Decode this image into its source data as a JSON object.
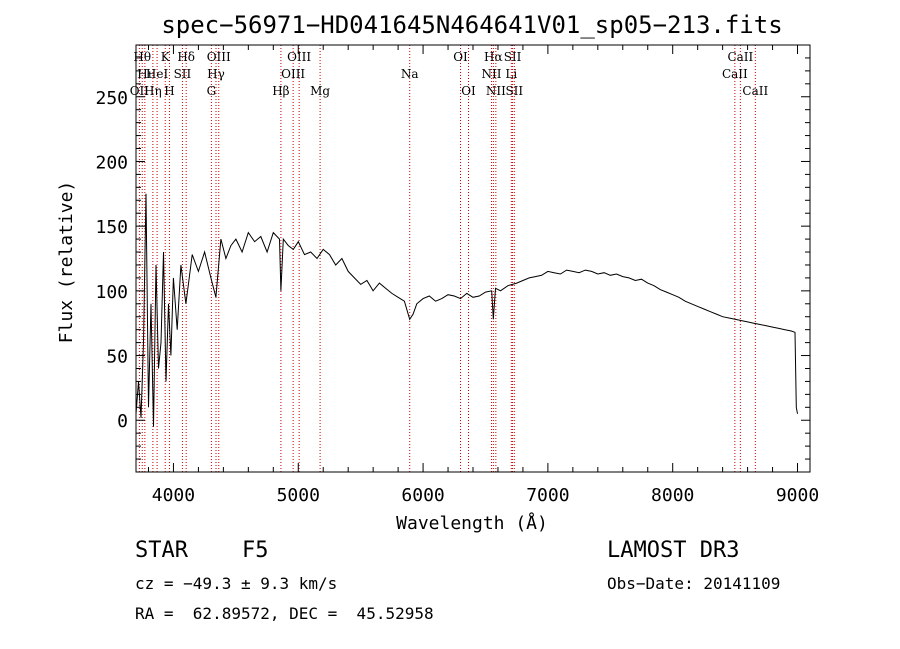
{
  "chart_data": {
    "type": "line",
    "title": "spec−56971−HD041645N464641V01_sp05−213.fits",
    "xlabel": "Wavelength (Å)",
    "ylabel": "Flux (relative)",
    "xlim": [
      3700,
      9100
    ],
    "ylim": [
      -40,
      290
    ],
    "xticks": [
      4000,
      5000,
      6000,
      7000,
      8000,
      9000
    ],
    "yticks": [
      0,
      50,
      100,
      150,
      200,
      250
    ],
    "grid": false,
    "series": [
      {
        "name": "flux",
        "x": [
          3700,
          3720,
          3740,
          3760,
          3780,
          3800,
          3820,
          3840,
          3860,
          3880,
          3900,
          3920,
          3940,
          3960,
          3980,
          4000,
          4030,
          4060,
          4100,
          4150,
          4200,
          4250,
          4300,
          4340,
          4380,
          4420,
          4460,
          4500,
          4550,
          4600,
          4650,
          4700,
          4750,
          4800,
          4850,
          4861,
          4880,
          4920,
          4960,
          5000,
          5050,
          5100,
          5150,
          5200,
          5250,
          5300,
          5350,
          5400,
          5450,
          5500,
          5550,
          5600,
          5650,
          5700,
          5750,
          5800,
          5850,
          5893,
          5920,
          5950,
          6000,
          6050,
          6100,
          6150,
          6200,
          6250,
          6300,
          6350,
          6400,
          6450,
          6500,
          6550,
          6563,
          6580,
          6620,
          6680,
          6750,
          6800,
          6850,
          6900,
          6950,
          7000,
          7050,
          7100,
          7150,
          7200,
          7250,
          7300,
          7350,
          7400,
          7450,
          7500,
          7550,
          7600,
          7650,
          7700,
          7750,
          7800,
          7850,
          7900,
          7950,
          8000,
          8050,
          8100,
          8150,
          8200,
          8250,
          8300,
          8350,
          8400,
          8450,
          8500,
          8550,
          8600,
          8650,
          8700,
          8750,
          8800,
          8850,
          8900,
          8950,
          8980,
          8990,
          9000
        ],
        "y": [
          5,
          30,
          2,
          60,
          175,
          10,
          90,
          -5,
          120,
          40,
          60,
          130,
          30,
          90,
          50,
          110,
          70,
          120,
          90,
          128,
          115,
          130,
          110,
          95,
          140,
          125,
          135,
          140,
          130,
          145,
          138,
          142,
          130,
          145,
          140,
          100,
          140,
          135,
          132,
          138,
          128,
          130,
          125,
          132,
          128,
          120,
          125,
          115,
          110,
          105,
          108,
          100,
          106,
          102,
          98,
          95,
          92,
          78,
          82,
          90,
          94,
          96,
          92,
          94,
          97,
          96,
          94,
          98,
          95,
          96,
          99,
          100,
          78,
          102,
          100,
          104,
          106,
          108,
          110,
          111,
          112,
          115,
          114,
          113,
          116,
          115,
          114,
          116,
          115,
          113,
          114,
          112,
          113,
          111,
          110,
          108,
          109,
          106,
          104,
          101,
          99,
          97,
          95,
          92,
          90,
          88,
          86,
          84,
          82,
          80,
          79,
          78,
          77,
          76,
          75,
          74,
          73,
          72,
          71,
          70,
          69,
          68,
          10,
          5
        ]
      }
    ],
    "line_markers": [
      {
        "wl": 3727,
        "label": "OII",
        "row": 3
      },
      {
        "wl": 3750,
        "label": "Hθ",
        "row": 1
      },
      {
        "wl": 3771,
        "label": "Hι",
        "row": 2
      },
      {
        "wl": 3835,
        "label": "Hη",
        "row": 3
      },
      {
        "wl": 3869,
        "label": "HeI",
        "row": 2
      },
      {
        "wl": 3934,
        "label": "K",
        "row": 1
      },
      {
        "wl": 3968,
        "label": "H",
        "row": 3
      },
      {
        "wl": 4072,
        "label": "SII",
        "row": 2
      },
      {
        "wl": 4102,
        "label": "Hδ",
        "row": 1
      },
      {
        "wl": 4304,
        "label": "G",
        "row": 3
      },
      {
        "wl": 4341,
        "label": "Hγ",
        "row": 2
      },
      {
        "wl": 4363,
        "label": "OIII",
        "row": 1
      },
      {
        "wl": 4861,
        "label": "Hβ",
        "row": 3
      },
      {
        "wl": 4959,
        "label": "OIII",
        "row": 2
      },
      {
        "wl": 5007,
        "label": "OIII",
        "row": 1
      },
      {
        "wl": 5175,
        "label": "Mg",
        "row": 3
      },
      {
        "wl": 5893,
        "label": "Na",
        "row": 2
      },
      {
        "wl": 6300,
        "label": "OI",
        "row": 1
      },
      {
        "wl": 6364,
        "label": "OI",
        "row": 3
      },
      {
        "wl": 6548,
        "label": "NII",
        "row": 2
      },
      {
        "wl": 6563,
        "label": "Hα",
        "row": 1
      },
      {
        "wl": 6583,
        "label": "NII",
        "row": 3
      },
      {
        "wl": 6707,
        "label": "Li",
        "row": 2
      },
      {
        "wl": 6717,
        "label": "SII",
        "row": 1
      },
      {
        "wl": 6731,
        "label": "SII",
        "row": 3
      },
      {
        "wl": 8498,
        "label": "CaII",
        "row": 2
      },
      {
        "wl": 8542,
        "label": "CaII",
        "row": 1
      },
      {
        "wl": 8662,
        "label": "CaII",
        "row": 3
      }
    ]
  },
  "footer": {
    "object_type": "STAR",
    "subclass": "F5",
    "survey": "LAMOST DR3",
    "cz": "cz = −49.3 ± 9.3 km/s",
    "obs_date": "Obs−Date: 20141109",
    "coords": "RA =  62.89572, DEC =  45.52958"
  },
  "colors": {
    "line_marker": "#cc0000",
    "spectrum": "#000000",
    "axes": "#000000"
  }
}
